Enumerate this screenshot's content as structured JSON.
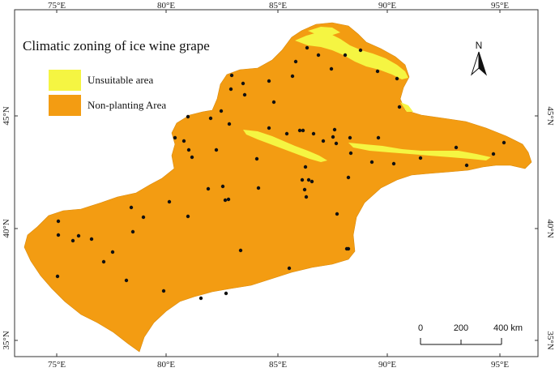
{
  "map": {
    "title": "Climatic zoning of ice wine grape",
    "legend": [
      {
        "label": "Unsuitable area",
        "color": "#f5f542"
      },
      {
        "label": "Non-planting Area",
        "color": "#f39c12"
      }
    ],
    "north_label": "N",
    "scale": {
      "labels": [
        "0",
        "200",
        "400 km"
      ]
    },
    "lon_ticks": [
      "75°E",
      "80°E",
      "85°E",
      "90°E",
      "95°E"
    ],
    "lat_ticks": [
      "35°N",
      "40°N",
      "45°N"
    ],
    "colors": {
      "region": "#f39c12",
      "unsuitable": "#f5f542",
      "station": "#111111",
      "frame": "#333333"
    },
    "stations_count_visible": 88
  }
}
